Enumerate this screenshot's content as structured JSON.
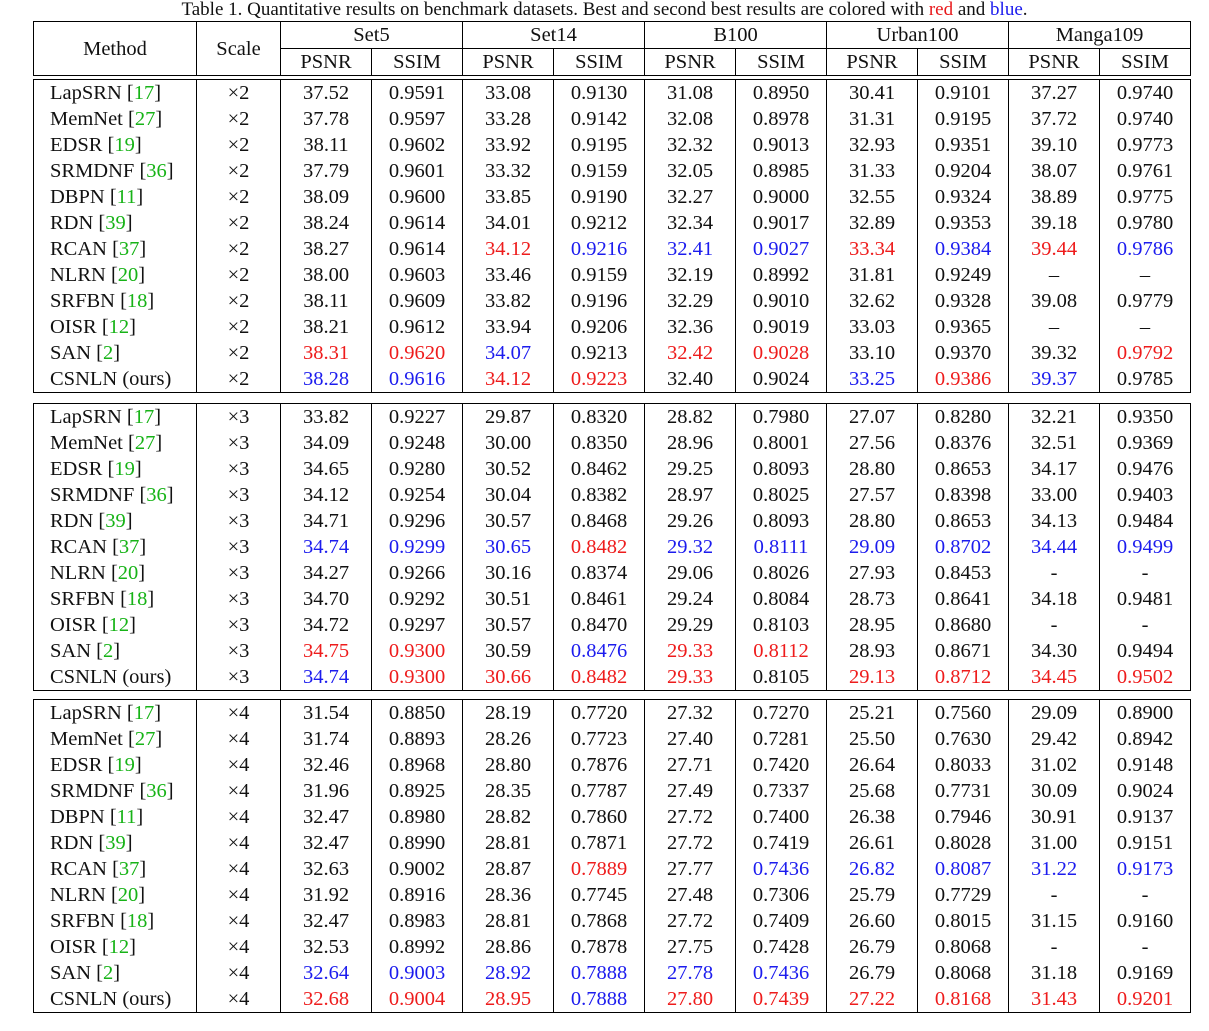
{
  "caption": {
    "prefix": "Table 1. Quantitative results on benchmark datasets. Best and second best results are colored with ",
    "red_word": "red",
    "and_word": " and ",
    "blue_word": "blue",
    "suffix": "."
  },
  "header": {
    "method": "Method",
    "scale": "Scale",
    "datasets": [
      "Set5",
      "Set14",
      "B100",
      "Urban100",
      "Manga109"
    ],
    "metrics": [
      "PSNR",
      "SSIM",
      "PSNR",
      "SSIM",
      "PSNR",
      "SSIM",
      "PSNR",
      "SSIM",
      "PSNR",
      "SSIM"
    ]
  },
  "colors": {
    "red": "#ee1c1c",
    "blue": "#1c1cee",
    "reference": "#17b317"
  },
  "blocks": [
    {
      "rows": [
        {
          "name": "LapSRN",
          "ref": "17",
          "scale": "×2",
          "values": [
            "37.52",
            "0.9591",
            "33.08",
            "0.9130",
            "31.08",
            "0.8950",
            "30.41",
            "0.9101",
            "37.27",
            "0.9740"
          ],
          "colors": [
            "",
            "",
            "",
            "",
            "",
            "",
            "",
            "",
            "",
            ""
          ]
        },
        {
          "name": "MemNet",
          "ref": "27",
          "scale": "×2",
          "values": [
            "37.78",
            "0.9597",
            "33.28",
            "0.9142",
            "32.08",
            "0.8978",
            "31.31",
            "0.9195",
            "37.72",
            "0.9740"
          ],
          "colors": [
            "",
            "",
            "",
            "",
            "",
            "",
            "",
            "",
            "",
            ""
          ]
        },
        {
          "name": "EDSR",
          "ref": "19",
          "scale": "×2",
          "values": [
            "38.11",
            "0.9602",
            "33.92",
            "0.9195",
            "32.32",
            "0.9013",
            "32.93",
            "0.9351",
            "39.10",
            "0.9773"
          ],
          "colors": [
            "",
            "",
            "",
            "",
            "",
            "",
            "",
            "",
            "",
            ""
          ]
        },
        {
          "name": "SRMDNF",
          "ref": "36",
          "scale": "×2",
          "values": [
            "37.79",
            "0.9601",
            "33.32",
            "0.9159",
            "32.05",
            "0.8985",
            "31.33",
            "0.9204",
            "38.07",
            "0.9761"
          ],
          "colors": [
            "",
            "",
            "",
            "",
            "",
            "",
            "",
            "",
            "",
            ""
          ]
        },
        {
          "name": "DBPN",
          "ref": "11",
          "scale": "×2",
          "values": [
            "38.09",
            "0.9600",
            "33.85",
            "0.9190",
            "32.27",
            "0.9000",
            "32.55",
            "0.9324",
            "38.89",
            "0.9775"
          ],
          "colors": [
            "",
            "",
            "",
            "",
            "",
            "",
            "",
            "",
            "",
            ""
          ]
        },
        {
          "name": "RDN",
          "ref": "39",
          "scale": "×2",
          "values": [
            "38.24",
            "0.9614",
            "34.01",
            "0.9212",
            "32.34",
            "0.9017",
            "32.89",
            "0.9353",
            "39.18",
            "0.9780"
          ],
          "colors": [
            "",
            "",
            "",
            "",
            "",
            "",
            "",
            "",
            "",
            ""
          ]
        },
        {
          "name": "RCAN",
          "ref": "37",
          "scale": "×2",
          "values": [
            "38.27",
            "0.9614",
            "34.12",
            "0.9216",
            "32.41",
            "0.9027",
            "33.34",
            "0.9384",
            "39.44",
            "0.9786"
          ],
          "colors": [
            "",
            "",
            "red",
            "blue",
            "blue",
            "blue",
            "red",
            "blue",
            "red",
            "blue"
          ]
        },
        {
          "name": "NLRN",
          "ref": "20",
          "scale": "×2",
          "values": [
            "38.00",
            "0.9603",
            "33.46",
            "0.9159",
            "32.19",
            "0.8992",
            "31.81",
            "0.9249",
            "–",
            "–"
          ],
          "colors": [
            "",
            "",
            "",
            "",
            "",
            "",
            "",
            "",
            "",
            ""
          ]
        },
        {
          "name": "SRFBN",
          "ref": "18",
          "scale": "×2",
          "values": [
            "38.11",
            "0.9609",
            "33.82",
            "0.9196",
            "32.29",
            "0.9010",
            "32.62",
            "0.9328",
            "39.08",
            "0.9779"
          ],
          "colors": [
            "",
            "",
            "",
            "",
            "",
            "",
            "",
            "",
            "",
            ""
          ]
        },
        {
          "name": "OISR",
          "ref": "12",
          "scale": "×2",
          "values": [
            "38.21",
            "0.9612",
            "33.94",
            "0.9206",
            "32.36",
            "0.9019",
            "33.03",
            "0.9365",
            "–",
            "–"
          ],
          "colors": [
            "",
            "",
            "",
            "",
            "",
            "",
            "",
            "",
            "",
            ""
          ]
        },
        {
          "name": "SAN",
          "ref": "2",
          "scale": "×2",
          "values": [
            "38.31",
            "0.9620",
            "34.07",
            "0.9213",
            "32.42",
            "0.9028",
            "33.10",
            "0.9370",
            "39.32",
            "0.9792"
          ],
          "colors": [
            "red",
            "red",
            "blue",
            "",
            "red",
            "red",
            "",
            "",
            "",
            "red"
          ]
        },
        {
          "name": "CSNLN (ours)",
          "ref": "",
          "scale": "×2",
          "values": [
            "38.28",
            "0.9616",
            "34.12",
            "0.9223",
            "32.40",
            "0.9024",
            "33.25",
            "0.9386",
            "39.37",
            "0.9785"
          ],
          "colors": [
            "blue",
            "blue",
            "red",
            "red",
            "",
            "",
            "blue",
            "red",
            "blue",
            ""
          ]
        }
      ]
    },
    {
      "rows": [
        {
          "name": "LapSRN",
          "ref": "17",
          "scale": "×3",
          "values": [
            "33.82",
            "0.9227",
            "29.87",
            "0.8320",
            "28.82",
            "0.7980",
            "27.07",
            "0.8280",
            "32.21",
            "0.9350"
          ],
          "colors": [
            "",
            "",
            "",
            "",
            "",
            "",
            "",
            "",
            "",
            ""
          ]
        },
        {
          "name": "MemNet",
          "ref": "27",
          "scale": "×3",
          "values": [
            "34.09",
            "0.9248",
            "30.00",
            "0.8350",
            "28.96",
            "0.8001",
            "27.56",
            "0.8376",
            "32.51",
            "0.9369"
          ],
          "colors": [
            "",
            "",
            "",
            "",
            "",
            "",
            "",
            "",
            "",
            ""
          ]
        },
        {
          "name": "EDSR",
          "ref": "19",
          "scale": "×3",
          "values": [
            "34.65",
            "0.9280",
            "30.52",
            "0.8462",
            "29.25",
            "0.8093",
            "28.80",
            "0.8653",
            "34.17",
            "0.9476"
          ],
          "colors": [
            "",
            "",
            "",
            "",
            "",
            "",
            "",
            "",
            "",
            ""
          ]
        },
        {
          "name": "SRMDNF",
          "ref": "36",
          "scale": "×3",
          "values": [
            "34.12",
            "0.9254",
            "30.04",
            "0.8382",
            "28.97",
            "0.8025",
            "27.57",
            "0.8398",
            "33.00",
            "0.9403"
          ],
          "colors": [
            "",
            "",
            "",
            "",
            "",
            "",
            "",
            "",
            "",
            ""
          ]
        },
        {
          "name": "RDN",
          "ref": "39",
          "scale": "×3",
          "values": [
            "34.71",
            "0.9296",
            "30.57",
            "0.8468",
            "29.26",
            "0.8093",
            "28.80",
            "0.8653",
            "34.13",
            "0.9484"
          ],
          "colors": [
            "",
            "",
            "",
            "",
            "",
            "",
            "",
            "",
            "",
            ""
          ]
        },
        {
          "name": "RCAN",
          "ref": "37",
          "scale": "×3",
          "values": [
            "34.74",
            "0.9299",
            "30.65",
            "0.8482",
            "29.32",
            "0.8111",
            "29.09",
            "0.8702",
            "34.44",
            "0.9499"
          ],
          "colors": [
            "blue",
            "blue",
            "blue",
            "red",
            "blue",
            "blue",
            "blue",
            "blue",
            "blue",
            "blue"
          ]
        },
        {
          "name": "NLRN",
          "ref": "20",
          "scale": "×3",
          "values": [
            "34.27",
            "0.9266",
            "30.16",
            "0.8374",
            "29.06",
            "0.8026",
            "27.93",
            "0.8453",
            "-",
            "-"
          ],
          "colors": [
            "",
            "",
            "",
            "",
            "",
            "",
            "",
            "",
            "",
            ""
          ]
        },
        {
          "name": "SRFBN",
          "ref": "18",
          "scale": "×3",
          "values": [
            "34.70",
            "0.9292",
            "30.51",
            "0.8461",
            "29.24",
            "0.8084",
            "28.73",
            "0.8641",
            "34.18",
            "0.9481"
          ],
          "colors": [
            "",
            "",
            "",
            "",
            "",
            "",
            "",
            "",
            "",
            ""
          ]
        },
        {
          "name": "OISR",
          "ref": "12",
          "scale": "×3",
          "values": [
            "34.72",
            "0.9297",
            "30.57",
            "0.8470",
            "29.29",
            "0.8103",
            "28.95",
            "0.8680",
            "-",
            "-"
          ],
          "colors": [
            "",
            "",
            "",
            "",
            "",
            "",
            "",
            "",
            "",
            ""
          ]
        },
        {
          "name": "SAN",
          "ref": "2",
          "scale": "×3",
          "values": [
            "34.75",
            "0.9300",
            "30.59",
            "0.8476",
            "29.33",
            "0.8112",
            "28.93",
            "0.8671",
            "34.30",
            "0.9494"
          ],
          "colors": [
            "red",
            "red",
            "",
            "blue",
            "red",
            "red",
            "",
            "",
            "",
            ""
          ]
        },
        {
          "name": "CSNLN (ours)",
          "ref": "",
          "scale": "×3",
          "values": [
            "34.74",
            "0.9300",
            "30.66",
            "0.8482",
            "29.33",
            "0.8105",
            "29.13",
            "0.8712",
            "34.45",
            "0.9502"
          ],
          "colors": [
            "blue",
            "red",
            "red",
            "red",
            "red",
            "",
            "red",
            "red",
            "red",
            "red"
          ]
        }
      ]
    },
    {
      "rows": [
        {
          "name": "LapSRN",
          "ref": "17",
          "scale": "×4",
          "values": [
            "31.54",
            "0.8850",
            "28.19",
            "0.7720",
            "27.32",
            "0.7270",
            "25.21",
            "0.7560",
            "29.09",
            "0.8900"
          ],
          "colors": [
            "",
            "",
            "",
            "",
            "",
            "",
            "",
            "",
            "",
            ""
          ]
        },
        {
          "name": "MemNet",
          "ref": "27",
          "scale": "×4",
          "values": [
            "31.74",
            "0.8893",
            "28.26",
            "0.7723",
            "27.40",
            "0.7281",
            "25.50",
            "0.7630",
            "29.42",
            "0.8942"
          ],
          "colors": [
            "",
            "",
            "",
            "",
            "",
            "",
            "",
            "",
            "",
            ""
          ]
        },
        {
          "name": "EDSR",
          "ref": "19",
          "scale": "×4",
          "values": [
            "32.46",
            "0.8968",
            "28.80",
            "0.7876",
            "27.71",
            "0.7420",
            "26.64",
            "0.8033",
            "31.02",
            "0.9148"
          ],
          "colors": [
            "",
            "",
            "",
            "",
            "",
            "",
            "",
            "",
            "",
            ""
          ]
        },
        {
          "name": "SRMDNF",
          "ref": "36",
          "scale": "×4",
          "values": [
            "31.96",
            "0.8925",
            "28.35",
            "0.7787",
            "27.49",
            "0.7337",
            "25.68",
            "0.7731",
            "30.09",
            "0.9024"
          ],
          "colors": [
            "",
            "",
            "",
            "",
            "",
            "",
            "",
            "",
            "",
            ""
          ]
        },
        {
          "name": "DBPN",
          "ref": "11",
          "scale": "×4",
          "values": [
            "32.47",
            "0.8980",
            "28.82",
            "0.7860",
            "27.72",
            "0.7400",
            "26.38",
            "0.7946",
            "30.91",
            "0.9137"
          ],
          "colors": [
            "",
            "",
            "",
            "",
            "",
            "",
            "",
            "",
            "",
            ""
          ]
        },
        {
          "name": "RDN",
          "ref": "39",
          "scale": "×4",
          "values": [
            "32.47",
            "0.8990",
            "28.81",
            "0.7871",
            "27.72",
            "0.7419",
            "26.61",
            "0.8028",
            "31.00",
            "0.9151"
          ],
          "colors": [
            "",
            "",
            "",
            "",
            "",
            "",
            "",
            "",
            "",
            ""
          ]
        },
        {
          "name": "RCAN",
          "ref": "37",
          "scale": "×4",
          "values": [
            "32.63",
            "0.9002",
            "28.87",
            "0.7889",
            "27.77",
            "0.7436",
            "26.82",
            "0.8087",
            "31.22",
            "0.9173"
          ],
          "colors": [
            "",
            "",
            "",
            "red",
            "",
            "blue",
            "blue",
            "blue",
            "blue",
            "blue"
          ]
        },
        {
          "name": "NLRN",
          "ref": "20",
          "scale": "×4",
          "values": [
            "31.92",
            "0.8916",
            "28.36",
            "0.7745",
            "27.48",
            "0.7306",
            "25.79",
            "0.7729",
            "-",
            "-"
          ],
          "colors": [
            "",
            "",
            "",
            "",
            "",
            "",
            "",
            "",
            "",
            ""
          ]
        },
        {
          "name": "SRFBN",
          "ref": "18",
          "scale": "×4",
          "values": [
            "32.47",
            "0.8983",
            "28.81",
            "0.7868",
            "27.72",
            "0.7409",
            "26.60",
            "0.8015",
            "31.15",
            "0.9160"
          ],
          "colors": [
            "",
            "",
            "",
            "",
            "",
            "",
            "",
            "",
            "",
            ""
          ]
        },
        {
          "name": "OISR",
          "ref": "12",
          "scale": "×4",
          "values": [
            "32.53",
            "0.8992",
            "28.86",
            "0.7878",
            "27.75",
            "0.7428",
            "26.79",
            "0.8068",
            "-",
            "-"
          ],
          "colors": [
            "",
            "",
            "",
            "",
            "",
            "",
            "",
            "",
            "",
            ""
          ]
        },
        {
          "name": "SAN",
          "ref": "2",
          "scale": "×4",
          "values": [
            "32.64",
            "0.9003",
            "28.92",
            "0.7888",
            "27.78",
            "0.7436",
            "26.79",
            "0.8068",
            "31.18",
            "0.9169"
          ],
          "colors": [
            "blue",
            "blue",
            "blue",
            "blue",
            "blue",
            "blue",
            "",
            "",
            "",
            ""
          ]
        },
        {
          "name": "CSNLN (ours)",
          "ref": "",
          "scale": "×4",
          "values": [
            "32.68",
            "0.9004",
            "28.95",
            "0.7888",
            "27.80",
            "0.7439",
            "27.22",
            "0.8168",
            "31.43",
            "0.9201"
          ],
          "colors": [
            "red",
            "red",
            "red",
            "blue",
            "red",
            "red",
            "red",
            "red",
            "red",
            "red"
          ]
        }
      ]
    }
  ]
}
